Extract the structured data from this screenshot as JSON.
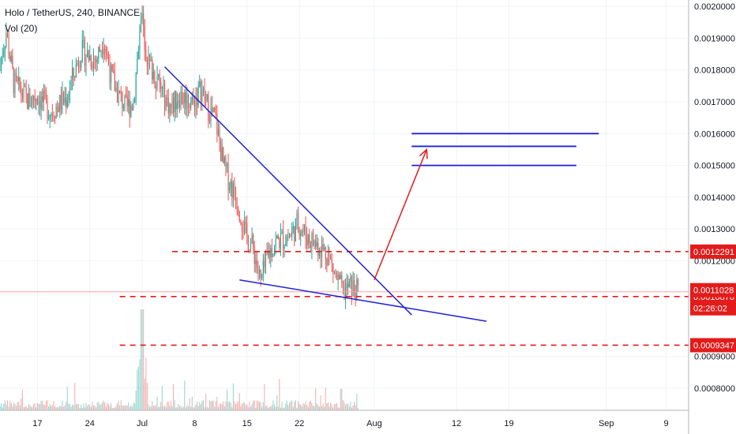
{
  "legend": {
    "symbol": "Holo / TetherUS, 240, BINANCE",
    "volume": "Vol (20)"
  },
  "colors": {
    "up": "#26a69a",
    "down": "#ef5350",
    "trendline": "#1e22d6",
    "arrow": "#e31b1b",
    "level": "#e31b1b",
    "grid": "#f0f3fa",
    "badge": "#e31b1b"
  },
  "chart_data": {
    "type": "candlestick",
    "ylim": [
      0.00073,
      0.00202
    ],
    "x_range": [
      "2019-06-12",
      "2019-09-12"
    ],
    "y_ticks": [
      "0.0020000",
      "0.0019000",
      "0.0018000",
      "0.0017000",
      "0.0016000",
      "0.0015000",
      "0.0014000",
      "0.0013000",
      "0.0012000",
      "0.0009000",
      "0.0008000"
    ],
    "y_tick_values": [
      0.002,
      0.0019,
      0.0018,
      0.0017,
      0.0016,
      0.0015,
      0.0014,
      0.0013,
      0.0012,
      0.0009,
      0.0008
    ],
    "x_ticks": [
      {
        "label": "17",
        "date": "2019-06-17"
      },
      {
        "label": "24",
        "date": "2019-06-24"
      },
      {
        "label": "Jul",
        "date": "2019-07-01"
      },
      {
        "label": "8",
        "date": "2019-07-08"
      },
      {
        "label": "15",
        "date": "2019-07-15"
      },
      {
        "label": "22",
        "date": "2019-07-22"
      },
      {
        "label": "Aug",
        "date": "2019-08-01"
      },
      {
        "label": "12",
        "date": "2019-08-12"
      },
      {
        "label": "19",
        "date": "2019-08-19"
      },
      {
        "label": "Sep",
        "date": "2019-09-01"
      },
      {
        "label": "9",
        "date": "2019-09-09"
      }
    ],
    "price_path": [
      [
        "2019-06-12",
        0.0018
      ],
      [
        "2019-06-13",
        0.00192
      ],
      [
        "2019-06-14",
        0.00176
      ],
      [
        "2019-06-16",
        0.0017
      ],
      [
        "2019-06-17",
        0.00172
      ],
      [
        "2019-06-19",
        0.00167
      ],
      [
        "2019-06-21",
        0.00171
      ],
      [
        "2019-06-23",
        0.00186
      ],
      [
        "2019-06-25",
        0.00183
      ],
      [
        "2019-06-26",
        0.0019
      ],
      [
        "2019-06-27",
        0.00178
      ],
      [
        "2019-06-28",
        0.00172
      ],
      [
        "2019-06-29",
        0.00168
      ],
      [
        "2019-06-30",
        0.0017
      ],
      [
        "2019-07-01",
        0.00197
      ],
      [
        "2019-07-02",
        0.00182
      ],
      [
        "2019-07-03",
        0.00178
      ],
      [
        "2019-07-04",
        0.00172
      ],
      [
        "2019-07-05",
        0.00168
      ],
      [
        "2019-07-06",
        0.00172
      ],
      [
        "2019-07-08",
        0.0017
      ],
      [
        "2019-07-09",
        0.00174
      ],
      [
        "2019-07-10",
        0.00168
      ],
      [
        "2019-07-11",
        0.00164
      ],
      [
        "2019-07-12",
        0.0015
      ],
      [
        "2019-07-13",
        0.00144
      ],
      [
        "2019-07-14",
        0.00138
      ],
      [
        "2019-07-15",
        0.00128
      ],
      [
        "2019-07-16",
        0.00124
      ],
      [
        "2019-07-17",
        0.00113
      ],
      [
        "2019-07-18",
        0.00122
      ],
      [
        "2019-07-19",
        0.00126
      ],
      [
        "2019-07-21",
        0.00128
      ],
      [
        "2019-07-22",
        0.00132
      ],
      [
        "2019-07-23",
        0.00128
      ],
      [
        "2019-07-24",
        0.00126
      ],
      [
        "2019-07-25",
        0.00124
      ],
      [
        "2019-07-26",
        0.00122
      ],
      [
        "2019-07-27",
        0.00115
      ],
      [
        "2019-07-28",
        0.0011
      ],
      [
        "2019-07-29",
        0.00112
      ],
      [
        "2019-07-30",
        0.0011
      ]
    ],
    "volume_max_date": "2019-07-01",
    "current_price": "0.0011028",
    "countdown": "02:26:02",
    "levels": [
      {
        "price": 0.0012291,
        "label": "0.0012291",
        "x_start": "2019-07-05"
      },
      {
        "price": 0.0010878,
        "label": "0.0010878",
        "x_start": "2019-06-28"
      },
      {
        "price": 0.0009347,
        "label": "0.0009347",
        "x_start": "2019-06-28"
      }
    ],
    "trendlines": [
      {
        "x1": "2019-07-04",
        "y1": 0.00181,
        "x2": "2019-08-06",
        "y2": 0.00103
      },
      {
        "x1": "2019-07-14",
        "y1": 0.00114,
        "x2": "2019-08-16",
        "y2": 0.00101
      }
    ],
    "target_lines": [
      {
        "x1": "2019-08-06",
        "x2": "2019-08-31",
        "y": 0.0016
      },
      {
        "x1": "2019-08-06",
        "x2": "2019-08-28",
        "y": 0.00156
      },
      {
        "x1": "2019-08-06",
        "x2": "2019-08-28",
        "y": 0.0015
      }
    ],
    "projection_arrow": {
      "x1": "2019-08-01",
      "y1": 0.00114,
      "x2": "2019-08-08",
      "y2": 0.00155
    }
  }
}
